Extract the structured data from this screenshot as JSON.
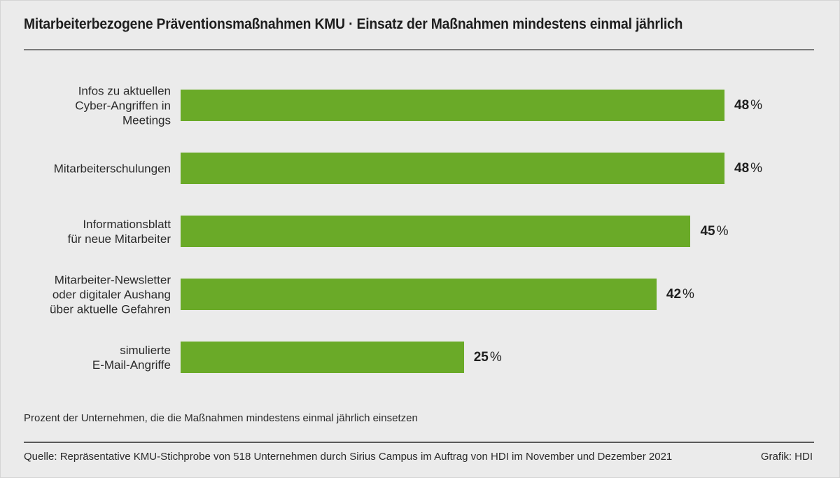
{
  "header": {
    "title": "Mitarbeiterbezogene Präventionsmaßnahmen KMU · Einsatz der Maßnahmen mindestens einmal jährlich"
  },
  "footer": {
    "note": "Prozent der Unternehmen, die die Maßnahmen mindestens einmal jährlich einsetzen",
    "source": "Quelle: Repräsentative KMU-Stichprobe von 518 Unternehmen durch Sirius Campus im Auftrag von HDI im November und Dezember 2021",
    "credit": "Grafik: HDI"
  },
  "colors": {
    "bar": "#6aaa28",
    "background": "#ebebeb",
    "text": "#222222"
  },
  "bars": [
    {
      "label": "Infos zu aktuellen\nCyber-Angriffen in\nMeetings",
      "value": 48,
      "value_text": "48",
      "unit": "%"
    },
    {
      "label": "Mitarbeiterschulungen",
      "value": 48,
      "value_text": "48",
      "unit": "%"
    },
    {
      "label": "Informationsblatt\nfür neue Mitarbeiter",
      "value": 45,
      "value_text": "45",
      "unit": "%"
    },
    {
      "label": "Mitarbeiter-Newsletter\noder digitaler Aushang\nüber aktuelle Gefahren",
      "value": 42,
      "value_text": "42",
      "unit": "%"
    },
    {
      "label": "simulierte\nE-Mail-Angriffe",
      "value": 25,
      "value_text": "25",
      "unit": "%"
    }
  ],
  "chart_data": {
    "type": "bar",
    "orientation": "horizontal",
    "title": "Mitarbeiterbezogene Präventionsmaßnahmen KMU · Einsatz der Maßnahmen mindestens einmal jährlich",
    "categories": [
      "Infos zu aktuellen Cyber-Angriffen in Meetings",
      "Mitarbeiterschulungen",
      "Informationsblatt für neue Mitarbeiter",
      "Mitarbeiter-Newsletter oder digitaler Aushang über aktuelle Gefahren",
      "simulierte E-Mail-Angriffe"
    ],
    "values": [
      48,
      48,
      45,
      42,
      25
    ],
    "unit": "%",
    "xlabel": "Prozent der Unternehmen, die die Maßnahmen mindestens einmal jährlich einsetzen",
    "ylabel": "",
    "data_labels": [
      "48 %",
      "48 %",
      "45 %",
      "42 %",
      "25 %"
    ],
    "grid": false,
    "legend": null,
    "source": "Quelle: Repräsentative KMU-Stichprobe von 518 Unternehmen durch Sirius Campus im Auftrag von HDI im November und Dezember 2021",
    "credit": "Grafik: HDI"
  }
}
